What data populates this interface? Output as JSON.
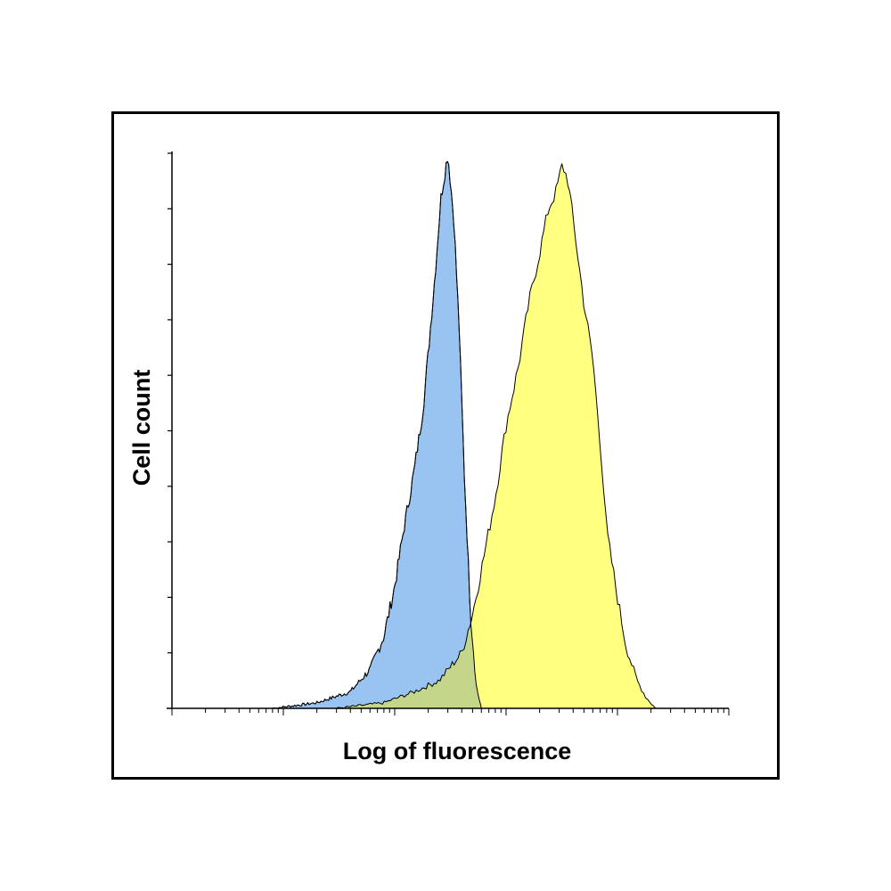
{
  "chart_data": {
    "type": "area",
    "title": "",
    "xlabel": "Log of fluorescence",
    "ylabel": "Cell count",
    "x_scale": "log",
    "xlim": [
      1,
      100000
    ],
    "ylim": [
      0,
      1
    ],
    "grid": false,
    "legend": "none",
    "series": [
      {
        "color": "#99c4f2",
        "overlap_color": "#c4d68a",
        "x": [
          8,
          20,
          40,
          60,
          80,
          100,
          120,
          150,
          180,
          200,
          230,
          260,
          300,
          340,
          380,
          420,
          480,
          540,
          600
        ],
        "values": [
          0.0,
          0.01,
          0.03,
          0.07,
          0.13,
          0.22,
          0.32,
          0.43,
          0.54,
          0.64,
          0.78,
          0.92,
          1.0,
          0.88,
          0.68,
          0.43,
          0.17,
          0.04,
          0.0
        ]
      },
      {
        "color": "#ffff80",
        "overlap_color": "#c4d68a",
        "x": [
          30,
          80,
          150,
          250,
          400,
          500,
          600,
          800,
          1000,
          1300,
          1600,
          2000,
          2400,
          2800,
          3200,
          3600,
          4000,
          5000,
          6000,
          7000,
          8000,
          10000,
          12000,
          15000,
          18000,
          22000
        ],
        "values": [
          0.0,
          0.01,
          0.03,
          0.05,
          0.1,
          0.17,
          0.25,
          0.38,
          0.51,
          0.62,
          0.73,
          0.82,
          0.9,
          0.93,
          0.98,
          0.95,
          0.88,
          0.73,
          0.63,
          0.48,
          0.32,
          0.2,
          0.11,
          0.05,
          0.02,
          0.0
        ]
      }
    ]
  }
}
